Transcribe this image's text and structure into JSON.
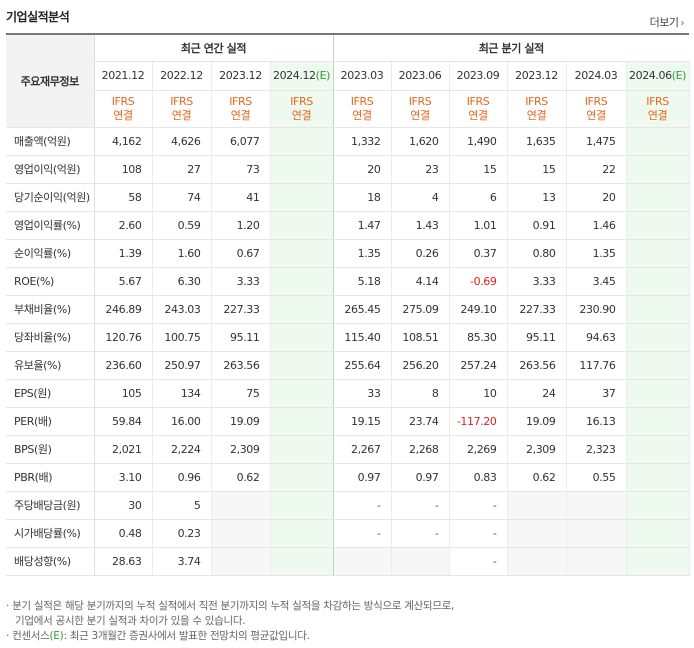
{
  "header": {
    "title": "기업실적분석",
    "more_label": "더보기"
  },
  "table": {
    "corner_label": "주요재무정보",
    "group_annual": "최근 연간 실적",
    "group_quarter": "최근 분기 실적",
    "periods_annual": [
      "2021.12",
      "2022.12",
      "2023.12",
      "2024.12"
    ],
    "periods_quarter": [
      "2023.03",
      "2023.06",
      "2023.09",
      "2023.12",
      "2024.03",
      "2024.06"
    ],
    "est_mark": "(E)",
    "ifrs_line1": "IFRS",
    "ifrs_line2": "연결",
    "rows": [
      {
        "label": "매출액(억원)",
        "annual": [
          "4,162",
          "4,626",
          "6,077",
          ""
        ],
        "quarter": [
          "1,332",
          "1,620",
          "1,490",
          "1,635",
          "1,475",
          ""
        ]
      },
      {
        "label": "영업이익(억원)",
        "annual": [
          "108",
          "27",
          "73",
          ""
        ],
        "quarter": [
          "20",
          "23",
          "15",
          "15",
          "22",
          ""
        ]
      },
      {
        "label": "당기순이익(억원)",
        "annual": [
          "58",
          "74",
          "41",
          ""
        ],
        "quarter": [
          "18",
          "4",
          "6",
          "13",
          "20",
          ""
        ]
      },
      {
        "label": "영업이익률(%)",
        "annual": [
          "2.60",
          "0.59",
          "1.20",
          ""
        ],
        "quarter": [
          "1.47",
          "1.43",
          "1.01",
          "0.91",
          "1.46",
          ""
        ]
      },
      {
        "label": "순이익률(%)",
        "annual": [
          "1.39",
          "1.60",
          "0.67",
          ""
        ],
        "quarter": [
          "1.35",
          "0.26",
          "0.37",
          "0.80",
          "1.35",
          ""
        ]
      },
      {
        "label": "ROE(%)",
        "annual": [
          "5.67",
          "6.30",
          "3.33",
          ""
        ],
        "quarter": [
          "5.18",
          "4.14",
          "-0.69",
          "3.33",
          "3.45",
          ""
        ]
      },
      {
        "label": "부채비율(%)",
        "annual": [
          "246.89",
          "243.03",
          "227.33",
          ""
        ],
        "quarter": [
          "265.45",
          "275.09",
          "249.10",
          "227.33",
          "230.90",
          ""
        ]
      },
      {
        "label": "당좌비율(%)",
        "annual": [
          "120.76",
          "100.75",
          "95.11",
          ""
        ],
        "quarter": [
          "115.40",
          "108.51",
          "85.30",
          "95.11",
          "94.63",
          ""
        ]
      },
      {
        "label": "유보율(%)",
        "annual": [
          "236.60",
          "250.97",
          "263.56",
          ""
        ],
        "quarter": [
          "255.64",
          "256.20",
          "257.24",
          "263.56",
          "117.76",
          ""
        ]
      },
      {
        "label": "EPS(원)",
        "annual": [
          "105",
          "134",
          "75",
          ""
        ],
        "quarter": [
          "33",
          "8",
          "10",
          "24",
          "37",
          ""
        ]
      },
      {
        "label": "PER(배)",
        "annual": [
          "59.84",
          "16.00",
          "19.09",
          ""
        ],
        "quarter": [
          "19.15",
          "23.74",
          "-117.20",
          "19.09",
          "16.13",
          ""
        ]
      },
      {
        "label": "BPS(원)",
        "annual": [
          "2,021",
          "2,224",
          "2,309",
          ""
        ],
        "quarter": [
          "2,267",
          "2,268",
          "2,269",
          "2,309",
          "2,323",
          ""
        ]
      },
      {
        "label": "PBR(배)",
        "annual": [
          "3.10",
          "0.96",
          "0.62",
          ""
        ],
        "quarter": [
          "0.97",
          "0.97",
          "0.83",
          "0.62",
          "0.55",
          ""
        ]
      },
      {
        "label": "주당배당금(원)",
        "annual": [
          "30",
          "5",
          "",
          ""
        ],
        "quarter": [
          "-",
          "-",
          "-",
          "",
          "",
          ""
        ]
      },
      {
        "label": "시가배당률(%)",
        "annual": [
          "0.48",
          "0.23",
          "",
          ""
        ],
        "quarter": [
          "-",
          "-",
          "-",
          "",
          "",
          ""
        ]
      },
      {
        "label": "배당성향(%)",
        "annual": [
          "28.63",
          "3.74",
          "",
          ""
        ],
        "quarter": [
          "",
          "",
          "-",
          "",
          "",
          ""
        ]
      }
    ]
  },
  "notes": {
    "line1": "· 분기 실적은 해당 분기까지의 누적 실적에서 직전 분기까지의 누적 실적을 차감하는 방식으로 계산되므로,",
    "line2": "기업에서 공시한 분기 실적과 차이가 있을 수 있습니다.",
    "line3_prefix": "· 컨센서스",
    "line3_est": "(E)",
    "line3_suffix": ": 최근 3개월간 증권사에서 발표한 전망치의 평균값입니다."
  },
  "colors": {
    "negative": "#e02020",
    "ifrs": "#e8651b",
    "estimate_bg": "#eef9ef",
    "estimate_mark": "#3a9a3a"
  }
}
